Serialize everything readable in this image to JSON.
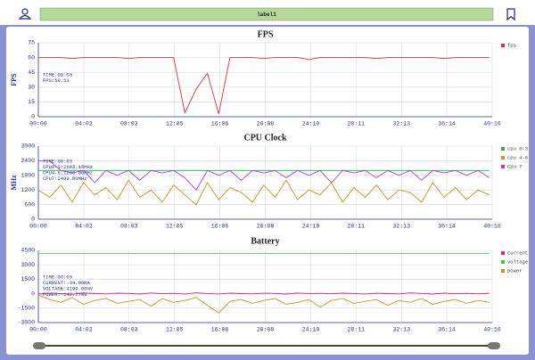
{
  "header": {
    "label": "label1"
  },
  "chart_data": [
    {
      "type": "line",
      "title": "FPS",
      "ylabel": "FPS",
      "annotation": [
        "TIME:00:03",
        "FPS:59.53"
      ],
      "x": [
        0,
        60,
        120,
        180,
        240,
        300,
        360,
        420,
        480,
        540,
        600,
        660,
        720,
        780,
        840,
        900,
        960,
        1020,
        1080,
        1140,
        1200,
        1260,
        1320,
        1380,
        1440,
        1500,
        1560,
        1620,
        1680,
        1740,
        1800,
        1860,
        1920,
        1980,
        2040,
        2100,
        2160,
        2220,
        2280,
        2340,
        2400
      ],
      "xlim": [
        0,
        2416
      ],
      "xticks": [
        {
          "value": 0,
          "label": "00:00"
        },
        {
          "value": 242,
          "label": "04:02"
        },
        {
          "value": 483,
          "label": "08:03"
        },
        {
          "value": 725,
          "label": "12:05"
        },
        {
          "value": 966,
          "label": "16:06"
        },
        {
          "value": 1208,
          "label": "20:08"
        },
        {
          "value": 1450,
          "label": "24:10"
        },
        {
          "value": 1691,
          "label": "28:11"
        },
        {
          "value": 1933,
          "label": "32:13"
        },
        {
          "value": 2174,
          "label": "36:14"
        },
        {
          "value": 2416,
          "label": "40:16"
        }
      ],
      "ylim": [
        0,
        75
      ],
      "yticks": [
        0,
        15,
        30,
        45,
        60,
        75
      ],
      "grid": true,
      "series": [
        {
          "name": "fps",
          "color": "#e0303c",
          "values": [
            60,
            60,
            60,
            59,
            60,
            60,
            60,
            60,
            59,
            60,
            60,
            60,
            60,
            4,
            28,
            44,
            3,
            60,
            60,
            60,
            59,
            60,
            60,
            60,
            58,
            60,
            60,
            60,
            60,
            60,
            59,
            60,
            60,
            60,
            60,
            60,
            59,
            60,
            60,
            60,
            60
          ]
        }
      ]
    },
    {
      "type": "line",
      "title": "CPU Clock",
      "ylabel": "MHz",
      "annotation": [
        "TIME:00:03",
        "CPU0-3:2003.10MHz",
        "CPU4-6:1200.00MHz",
        "CPU7:2400.00MHz"
      ],
      "x": [
        0,
        60,
        120,
        180,
        240,
        300,
        360,
        420,
        480,
        540,
        600,
        660,
        720,
        780,
        840,
        900,
        960,
        1020,
        1080,
        1140,
        1200,
        1260,
        1320,
        1380,
        1440,
        1500,
        1560,
        1620,
        1680,
        1740,
        1800,
        1860,
        1920,
        1980,
        2040,
        2100,
        2160,
        2220,
        2280,
        2340,
        2400
      ],
      "xlim": [
        0,
        2416
      ],
      "xticks": [
        {
          "value": 0,
          "label": "00:00"
        },
        {
          "value": 242,
          "label": "04:02"
        },
        {
          "value": 483,
          "label": "08:03"
        },
        {
          "value": 725,
          "label": "12:05"
        },
        {
          "value": 966,
          "label": "16:06"
        },
        {
          "value": 1208,
          "label": "20:08"
        },
        {
          "value": 1450,
          "label": "24:10"
        },
        {
          "value": 1691,
          "label": "28:11"
        },
        {
          "value": 1933,
          "label": "32:13"
        },
        {
          "value": 2174,
          "label": "36:14"
        },
        {
          "value": 2416,
          "label": "40:16"
        }
      ],
      "ylim": [
        0,
        3000
      ],
      "yticks": [
        0,
        600,
        1200,
        1800,
        2400,
        3000
      ],
      "grid": true,
      "series": [
        {
          "name": "cpu 0-3",
          "color": "#22b04a",
          "values": [
            2003,
            2003,
            2003,
            2003,
            2003,
            2003,
            2003,
            2003,
            2003,
            2003,
            2003,
            2003,
            2003,
            2003,
            2003,
            2003,
            2003,
            2003,
            2003,
            2003,
            2003,
            2003,
            2003,
            2003,
            2003,
            2003,
            2003,
            2003,
            2003,
            2003,
            2003,
            2003,
            2003,
            2003,
            2003,
            2003,
            2003,
            2003,
            2003,
            2003,
            2003
          ]
        },
        {
          "name": "cpu 4-6",
          "color": "#c8961e",
          "values": [
            1200,
            900,
            1400,
            700,
            1500,
            1000,
            1300,
            800,
            1600,
            900,
            1200,
            700,
            1400,
            1000,
            600,
            1500,
            800,
            1300,
            1100,
            700,
            1400,
            900,
            1600,
            800,
            1200,
            1000,
            1500,
            700,
            1300,
            900,
            1400,
            800,
            1200,
            1100,
            700,
            1500,
            900,
            1300,
            800,
            1200,
            1000
          ]
        },
        {
          "name": "cpu 7",
          "color": "#b23ee0",
          "values": [
            2400,
            2400,
            2000,
            1900,
            2000,
            1500,
            2000,
            1800,
            2000,
            1600,
            2000,
            1900,
            2000,
            1700,
            1200,
            2000,
            1800,
            2000,
            1600,
            2000,
            1900,
            2000,
            1700,
            2000,
            1800,
            2000,
            1500,
            2000,
            1900,
            2000,
            1700,
            2000,
            1800,
            2000,
            1600,
            2000,
            1900,
            2000,
            1800,
            2000,
            1700
          ]
        }
      ]
    },
    {
      "type": "line",
      "title": "Battery",
      "annotation": [
        "TIME:00:03",
        "CURRENT:-34.00mA",
        "VOLTAGE:4199.00mV",
        "POWER:-142.77mW"
      ],
      "x": [
        0,
        60,
        120,
        180,
        240,
        300,
        360,
        420,
        480,
        540,
        600,
        660,
        720,
        780,
        840,
        900,
        960,
        1020,
        1080,
        1140,
        1200,
        1260,
        1320,
        1380,
        1440,
        1500,
        1560,
        1620,
        1680,
        1740,
        1800,
        1860,
        1920,
        1980,
        2040,
        2100,
        2160,
        2220,
        2280,
        2340,
        2400
      ],
      "xlim": [
        0,
        2416
      ],
      "xticks": [
        {
          "value": 0,
          "label": "00:00"
        },
        {
          "value": 242,
          "label": "04:02"
        },
        {
          "value": 483,
          "label": "08:03"
        },
        {
          "value": 725,
          "label": "12:05"
        },
        {
          "value": 966,
          "label": "16:06"
        },
        {
          "value": 1208,
          "label": "20:08"
        },
        {
          "value": 1450,
          "label": "24:10"
        },
        {
          "value": 1691,
          "label": "28:11"
        },
        {
          "value": 1933,
          "label": "32:13"
        },
        {
          "value": 2174,
          "label": "36:14"
        },
        {
          "value": 2416,
          "label": "40:16"
        }
      ],
      "ylim": [
        -3000,
        4500
      ],
      "yticks": [
        -3000,
        -1500,
        0,
        1500,
        3000,
        4500
      ],
      "grid": true,
      "series": [
        {
          "name": "current",
          "color": "#d6287c",
          "values": [
            -34,
            50,
            20,
            -60,
            80,
            10,
            -20,
            60,
            30,
            -40,
            70,
            0,
            40,
            -50,
            90,
            20,
            -30,
            60,
            10,
            -20,
            50,
            30,
            -40,
            70,
            0,
            40,
            -10,
            60,
            20,
            -30,
            50,
            10,
            -20,
            80,
            30,
            -40,
            60,
            0,
            40,
            -20,
            50
          ]
        },
        {
          "name": "voltage",
          "color": "#3cc850",
          "values": [
            4199,
            4199,
            4198,
            4199,
            4199,
            4197,
            4199,
            4199,
            4198,
            4199,
            4199,
            4199,
            4196,
            4199,
            4199,
            4198,
            4199,
            4199,
            4199,
            4197,
            4199,
            4199,
            4198,
            4199,
            4199,
            4199,
            4198,
            4199,
            4199,
            4197,
            4199,
            4199,
            4198,
            4199,
            4199,
            4199,
            4198,
            4199,
            4199,
            4197,
            4199
          ]
        },
        {
          "name": "power",
          "color": "#c8961e",
          "values": [
            -142,
            -600,
            -900,
            -400,
            -1100,
            -700,
            -500,
            -1000,
            -800,
            -600,
            -1300,
            -500,
            -900,
            -700,
            -400,
            -1200,
            -2000,
            -800,
            -600,
            -1000,
            -700,
            -500,
            -1100,
            -900,
            -600,
            -1400,
            -700,
            -500,
            -1000,
            -800,
            -600,
            -1200,
            -700,
            -900,
            -500,
            -1100,
            -800,
            -600,
            -1000,
            -700,
            -900
          ]
        }
      ]
    }
  ]
}
